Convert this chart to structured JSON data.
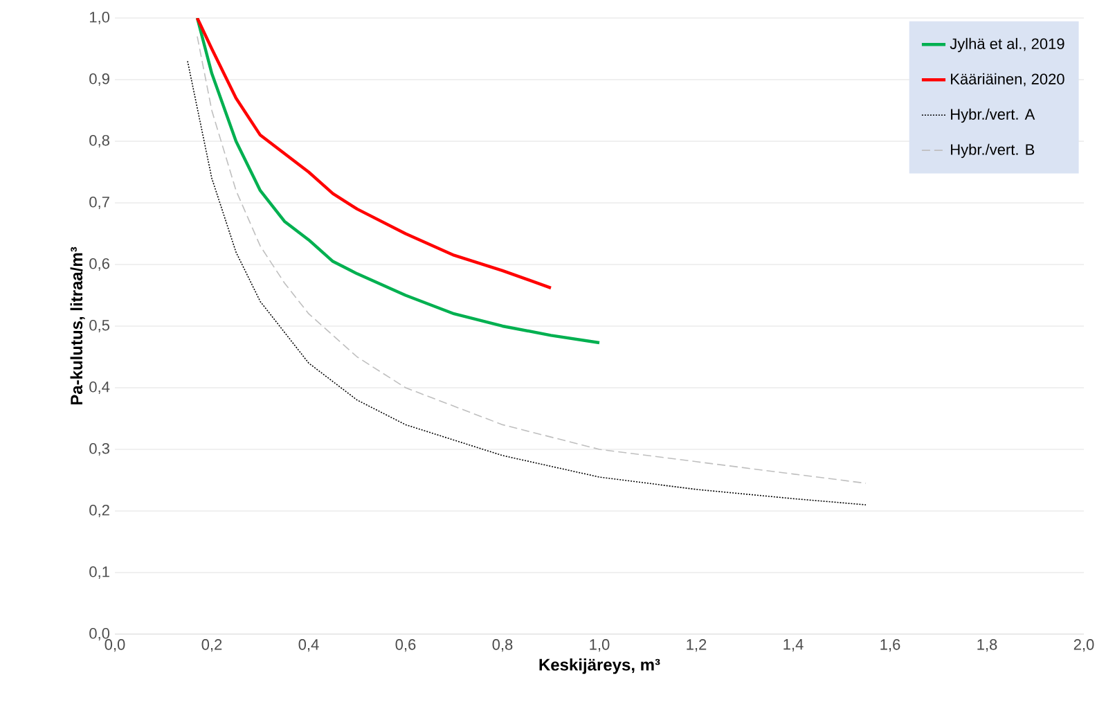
{
  "chart_data": {
    "type": "line",
    "xlabel": "Keskijäreys, m³",
    "ylabel": "Pa-kulutus, litraa/m³",
    "xlim": [
      0,
      2
    ],
    "ylim": [
      0,
      1
    ],
    "xticks": [
      {
        "value": 0,
        "label": "0,0"
      },
      {
        "value": 0.2,
        "label": "0,2"
      },
      {
        "value": 0.4,
        "label": "0,4"
      },
      {
        "value": 0.6,
        "label": "0,6"
      },
      {
        "value": 0.8,
        "label": "0,8"
      },
      {
        "value": 1,
        "label": "1,0"
      },
      {
        "value": 1.2,
        "label": "1,2"
      },
      {
        "value": 1.4,
        "label": "1,4"
      },
      {
        "value": 1.6,
        "label": "1,6"
      },
      {
        "value": 1.8,
        "label": "1,8"
      },
      {
        "value": 2,
        "label": "2,0"
      }
    ],
    "yticks": [
      {
        "value": 0,
        "label": "0,0"
      },
      {
        "value": 0.1,
        "label": "0,1"
      },
      {
        "value": 0.2,
        "label": "0,2"
      },
      {
        "value": 0.3,
        "label": "0,3"
      },
      {
        "value": 0.4,
        "label": "0,4"
      },
      {
        "value": 0.5,
        "label": "0,5"
      },
      {
        "value": 0.6,
        "label": "0,6"
      },
      {
        "value": 0.7,
        "label": "0,7"
      },
      {
        "value": 0.8,
        "label": "0,8"
      },
      {
        "value": 0.9,
        "label": "0,9"
      },
      {
        "value": 1,
        "label": "1,0"
      }
    ],
    "grid": "y",
    "legend": "top right",
    "marker": "none",
    "series": [
      {
        "name": "Jylhä et al., 2019",
        "color": "#00b050",
        "line_style": "solid",
        "x": [
          0.17,
          0.2,
          0.25,
          0.3,
          0.35,
          0.4,
          0.45,
          0.5,
          0.6,
          0.7,
          0.8,
          0.9,
          1.0
        ],
        "values": [
          1.0,
          0.91,
          0.8,
          0.72,
          0.67,
          0.64,
          0.605,
          0.585,
          0.55,
          0.52,
          0.5,
          0.485,
          0.473
        ]
      },
      {
        "name": "Kääriäinen, 2020",
        "color": "#ff0000",
        "line_style": "solid",
        "x": [
          0.17,
          0.2,
          0.25,
          0.3,
          0.35,
          0.4,
          0.45,
          0.5,
          0.6,
          0.7,
          0.8,
          0.9
        ],
        "values": [
          1.0,
          0.95,
          0.87,
          0.81,
          0.78,
          0.75,
          0.715,
          0.69,
          0.65,
          0.615,
          0.59,
          0.562
        ]
      },
      {
        "name": "Hybr./vert. A",
        "color": "#000000",
        "line_style": "dotted",
        "x": [
          0.15,
          0.2,
          0.25,
          0.3,
          0.35,
          0.4,
          0.5,
          0.6,
          0.8,
          1.0,
          1.2,
          1.4,
          1.55
        ],
        "values": [
          0.93,
          0.74,
          0.62,
          0.54,
          0.49,
          0.44,
          0.38,
          0.34,
          0.29,
          0.255,
          0.235,
          0.22,
          0.21
        ]
      },
      {
        "name": "Hybr./vert. B",
        "color": "#bfbfbf",
        "line_style": "dashed",
        "x": [
          0.17,
          0.2,
          0.25,
          0.3,
          0.35,
          0.4,
          0.5,
          0.6,
          0.8,
          1.0,
          1.2,
          1.4,
          1.55
        ],
        "values": [
          0.97,
          0.85,
          0.72,
          0.63,
          0.57,
          0.52,
          0.45,
          0.4,
          0.34,
          0.3,
          0.28,
          0.26,
          0.245
        ]
      }
    ]
  }
}
